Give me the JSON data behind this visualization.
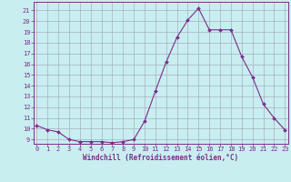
{
  "x": [
    0,
    1,
    2,
    3,
    4,
    5,
    6,
    7,
    8,
    9,
    10,
    11,
    12,
    13,
    14,
    15,
    16,
    17,
    18,
    19,
    20,
    21,
    22,
    23
  ],
  "y": [
    10.3,
    9.9,
    9.7,
    9.0,
    8.8,
    8.8,
    8.8,
    8.7,
    8.8,
    9.0,
    10.7,
    13.5,
    16.2,
    18.5,
    20.1,
    21.2,
    19.2,
    19.2,
    19.2,
    16.7,
    14.8,
    12.3,
    11.0,
    9.9
  ],
  "xticks": [
    0,
    1,
    2,
    3,
    4,
    5,
    6,
    7,
    8,
    9,
    10,
    11,
    12,
    13,
    14,
    15,
    16,
    17,
    18,
    19,
    20,
    21,
    22,
    23
  ],
  "yticks": [
    9,
    10,
    11,
    12,
    13,
    14,
    15,
    16,
    17,
    18,
    19,
    20,
    21
  ],
  "ylim": [
    8.6,
    21.8
  ],
  "xlim": [
    -0.3,
    23.3
  ],
  "xlabel": "Windchill (Refroidissement éolien,°C)",
  "line_color": "#7b2d8b",
  "marker_color": "#7b2d8b",
  "bg_color": "#c8eef0",
  "grid_color": "#a0a0b8",
  "tick_label_color": "#7b2d8b",
  "axis_color": "#7b2d8b"
}
